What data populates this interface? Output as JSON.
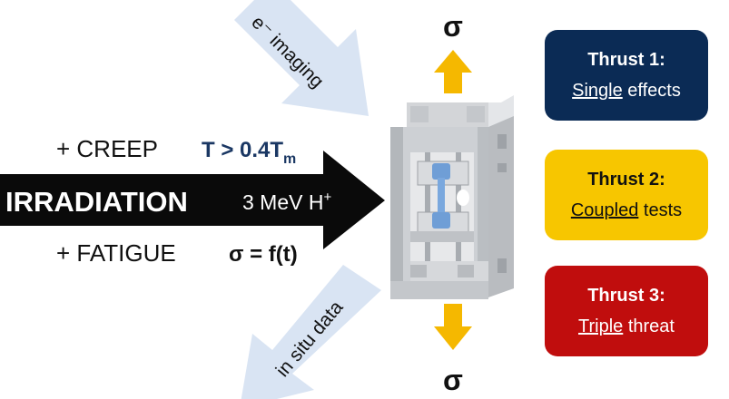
{
  "sigma_symbol": "σ",
  "imaging_label": "e⁻ imaging",
  "insitu_label": "in situ data",
  "creep": {
    "label": "+ CREEP",
    "temp_prefix": "T > 0.4T",
    "temp_sub": "m"
  },
  "irradiation": {
    "label": "IRRADIATION",
    "beam": "3 MeV H",
    "beam_sup": "+"
  },
  "fatigue": {
    "label": "+ FATIGUE",
    "stress": "σ = f(t)"
  },
  "thrusts": [
    {
      "title": "Thrust 1:",
      "underlined": "Single",
      "rest": " effects"
    },
    {
      "title": "Thrust 2:",
      "underlined": "Coupled",
      "rest": " tests"
    },
    {
      "title": "Thrust 3:",
      "underlined": "Triple",
      "rest": " threat"
    }
  ],
  "colors": {
    "navy": "#0b2b55",
    "gold": "#f7c600",
    "red": "#c00d0d",
    "arrow_light_blue": "#d9e4f3",
    "stress_arrow": "#f5b800",
    "sample_blue": "#6f9ed6"
  }
}
